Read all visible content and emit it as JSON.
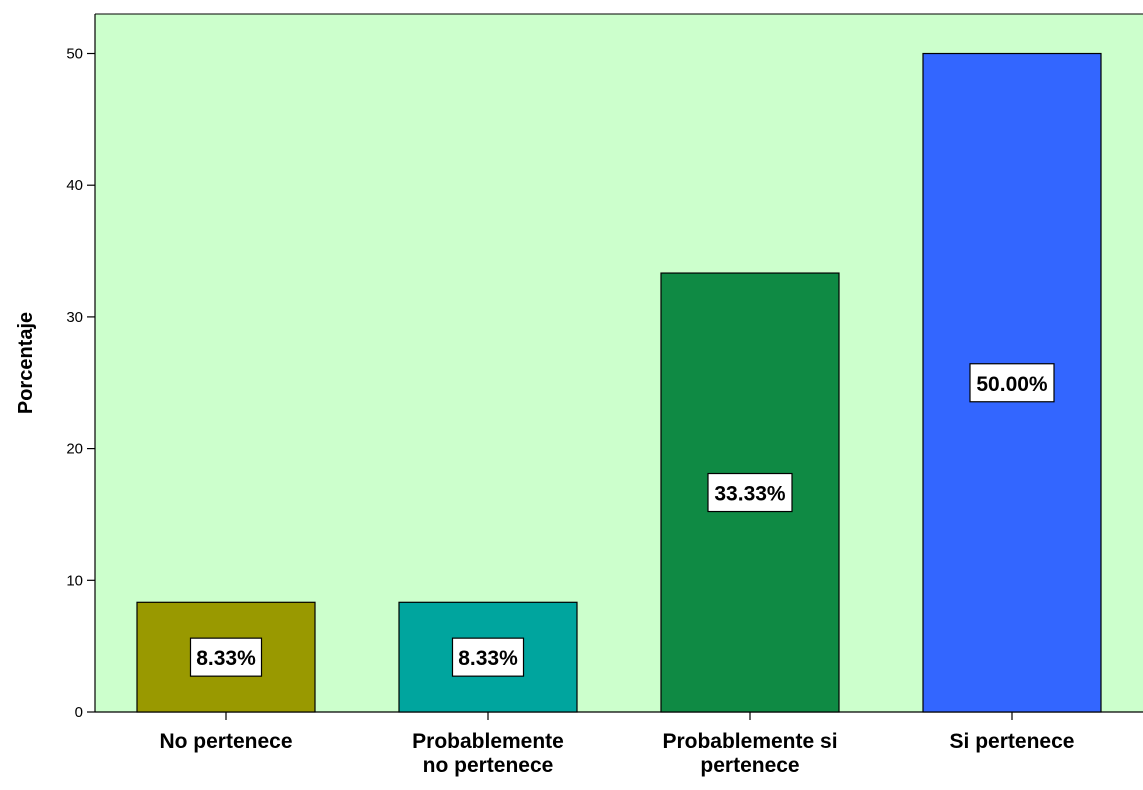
{
  "chart_data": {
    "type": "bar",
    "ylabel": "Porcentaje",
    "xlabel": "",
    "ylim": [
      0,
      53
    ],
    "yticks": [
      0,
      10,
      20,
      30,
      40,
      50
    ],
    "categories": [
      [
        "No pertenece"
      ],
      [
        "Probablemente",
        "no pertenece"
      ],
      [
        "Probablemente si",
        "pertenece"
      ],
      [
        "Si pertenece"
      ]
    ],
    "values": [
      8.33,
      8.33,
      33.33,
      50.0
    ],
    "data_labels": [
      "8.33%",
      "8.33%",
      "33.33%",
      "50.00%"
    ],
    "colors": [
      "#999900",
      "#00a59e",
      "#0f8a44",
      "#3366ff"
    ],
    "background_color": "#ccffcc",
    "grid": false,
    "legend": "none"
  }
}
